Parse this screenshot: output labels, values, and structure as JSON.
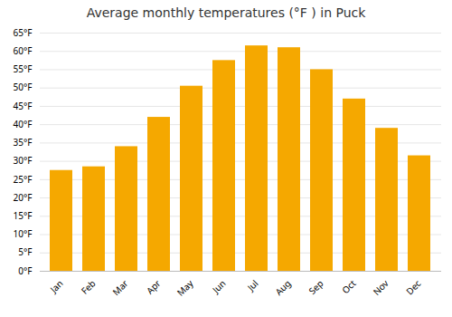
{
  "chart_data": {
    "type": "bar",
    "title": "Average monthly temperatures (°F ) in Puck",
    "categories": [
      "Jan",
      "Feb",
      "Mar",
      "Apr",
      "May",
      "Jun",
      "Jul",
      "Aug",
      "Sep",
      "Oct",
      "Nov",
      "Dec"
    ],
    "values": [
      27.5,
      28.5,
      34.0,
      42.0,
      50.5,
      57.5,
      61.5,
      61.0,
      55.0,
      47.0,
      39.0,
      31.5
    ],
    "color": "#F5A800",
    "ylim": [
      0,
      65
    ],
    "yticks": [
      {
        "value": 0,
        "label": "0°F"
      },
      {
        "value": 5,
        "label": "5°F"
      },
      {
        "value": 10,
        "label": "10°F"
      },
      {
        "value": 15,
        "label": "15°F"
      },
      {
        "value": 20,
        "label": "20°F"
      },
      {
        "value": 25,
        "label": "25°F"
      },
      {
        "value": 30,
        "label": "30°F"
      },
      {
        "value": 35,
        "label": "35°F"
      },
      {
        "value": 40,
        "label": "40°F"
      },
      {
        "value": 45,
        "label": "45°F"
      },
      {
        "value": 50,
        "label": "50°F"
      },
      {
        "value": 55,
        "label": "55°F"
      },
      {
        "value": 60,
        "label": "60°F"
      },
      {
        "value": 65,
        "label": "65°F"
      }
    ],
    "grid": true
  }
}
